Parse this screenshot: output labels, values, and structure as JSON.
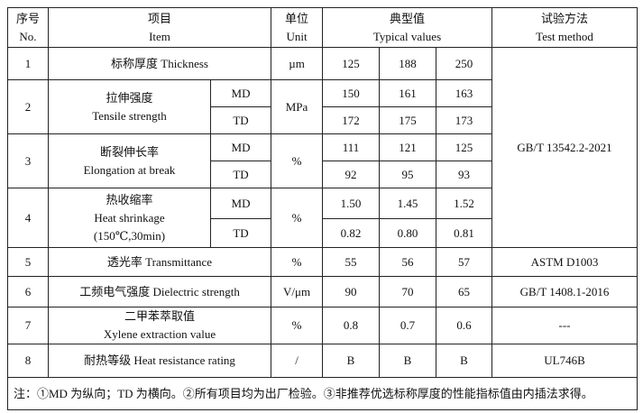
{
  "header": {
    "no_cn": "序号",
    "no_en": "No.",
    "item_cn": "项目",
    "item_en": "Item",
    "unit_cn": "单位",
    "unit_en": "Unit",
    "typ_cn": "典型值",
    "typ_en": "Typical values",
    "method_cn": "试验方法",
    "method_en": "Test method"
  },
  "rows": [
    {
      "no": "1",
      "item": "标称厚度 Thickness",
      "unit": "µm",
      "v": [
        "125",
        "188",
        "250"
      ]
    },
    {
      "no": "2",
      "item_cn": "拉伸强度",
      "item_en": "Tensile strength",
      "unit": "MPa",
      "md": [
        "150",
        "161",
        "163"
      ],
      "td": [
        "172",
        "175",
        "173"
      ]
    },
    {
      "no": "3",
      "item_cn": "断裂伸长率",
      "item_en": "Elongation at break",
      "unit": "%",
      "md": [
        "111",
        "121",
        "125"
      ],
      "td": [
        "92",
        "95",
        "93"
      ]
    },
    {
      "no": "4",
      "item_cn": "热收缩率",
      "item_en": "Heat shrinkage",
      "item_cond": "(150℃,30min)",
      "unit": "%",
      "md": [
        "1.50",
        "1.45",
        "1.52"
      ],
      "td": [
        "0.82",
        "0.80",
        "0.81"
      ]
    },
    {
      "no": "5",
      "item": "透光率  Transmittance",
      "unit": "%",
      "v": [
        "55",
        "56",
        "57"
      ],
      "method": "ASTM D1003"
    },
    {
      "no": "6",
      "item": "工频电气强度  Dielectric strength",
      "unit": "V/μm",
      "v": [
        "90",
        "70",
        "65"
      ],
      "method": "GB/T 1408.1-2016"
    },
    {
      "no": "7",
      "item_cn": "二甲苯萃取值",
      "item_en": "Xylene extraction value",
      "unit": "%",
      "v": [
        "0.8",
        "0.7",
        "0.6"
      ],
      "method": "---"
    },
    {
      "no": "8",
      "item": "耐热等级  Heat resistance rating",
      "unit": "/",
      "v": [
        "B",
        "B",
        "B"
      ],
      "method": "UL746B"
    }
  ],
  "md_label": "MD",
  "td_label": "TD",
  "method_1_4": "GB/T 13542.2-2021",
  "note": "注：①MD 为纵向；TD 为横向。②所有项目均为出厂检验。③非推荐优选标称厚度的性能指标值由内插法求得。"
}
